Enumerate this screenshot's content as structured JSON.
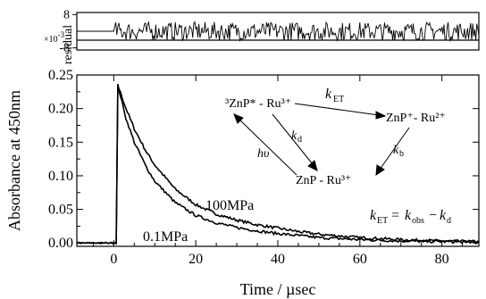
{
  "chart_data": [
    {
      "panel": "residual",
      "type": "line",
      "ylabel": "residual",
      "ylabel_multiplier": "×10",
      "ylabel_multiplier_exp": "-3",
      "ytick_labels": [
        "8",
        "-8"
      ],
      "yticks": [
        8,
        -8
      ],
      "ylim": [
        -9,
        9
      ],
      "xlim": [
        -9,
        89
      ],
      "series": [
        {
          "x": [
            -9,
            0,
            0.5,
            1,
            3,
            5,
            10,
            20,
            30,
            40,
            50,
            60,
            70,
            80,
            89
          ],
          "values": [
            0,
            0,
            3,
            -4,
            5,
            -3,
            4,
            -5,
            3,
            -4,
            5,
            -3,
            4,
            -2,
            2
          ]
        }
      ]
    },
    {
      "panel": "main",
      "type": "line",
      "xlabel": "Time / µsec",
      "ylabel": "Absorbance at 450nm",
      "xlim": [
        -9,
        89
      ],
      "ylim": [
        -0.005,
        0.25
      ],
      "xticks": [
        0,
        20,
        40,
        60,
        80
      ],
      "xtick_labels": [
        "0",
        "20",
        "40",
        "60",
        "80"
      ],
      "yticks": [
        0.0,
        0.05,
        0.1,
        0.15,
        0.2,
        0.25
      ],
      "ytick_labels": [
        "0.00",
        "0.05",
        "0.10",
        "0.15",
        "0.20",
        "0.25"
      ],
      "grid": false,
      "series": [
        {
          "label": "100MPa",
          "x": [
            -9,
            0,
            0.6,
            1,
            3,
            5,
            8,
            10,
            15,
            20,
            25,
            30,
            35,
            40,
            45,
            50,
            60,
            70,
            80,
            89
          ],
          "values": [
            0,
            0,
            0,
            0.235,
            0.2,
            0.17,
            0.135,
            0.116,
            0.08,
            0.057,
            0.043,
            0.034,
            0.027,
            0.022,
            0.017,
            0.013,
            0.008,
            0.005,
            0.003,
            0.002
          ]
        },
        {
          "label": "0.1MPa",
          "x": [
            -9,
            0,
            0.6,
            1,
            3,
            5,
            8,
            10,
            15,
            20,
            25,
            30,
            35,
            40,
            45,
            50,
            60,
            70,
            80,
            89
          ],
          "values": [
            0,
            0,
            0,
            0.235,
            0.185,
            0.15,
            0.112,
            0.092,
            0.06,
            0.041,
            0.03,
            0.023,
            0.018,
            0.014,
            0.011,
            0.008,
            0.005,
            0.003,
            0.002,
            0.001
          ]
        }
      ],
      "annotations": {
        "scheme_excited": "³ZnP* - Ru³⁺",
        "scheme_cs": "ZnP⁺- Ru²⁺",
        "scheme_ground": "ZnP - Ru³⁺",
        "k_et": "k_ET",
        "k_d": "k_d",
        "k_b": "k_b",
        "hv": "hυ",
        "equation": "k_ET = k_obs − k_d"
      }
    }
  ]
}
